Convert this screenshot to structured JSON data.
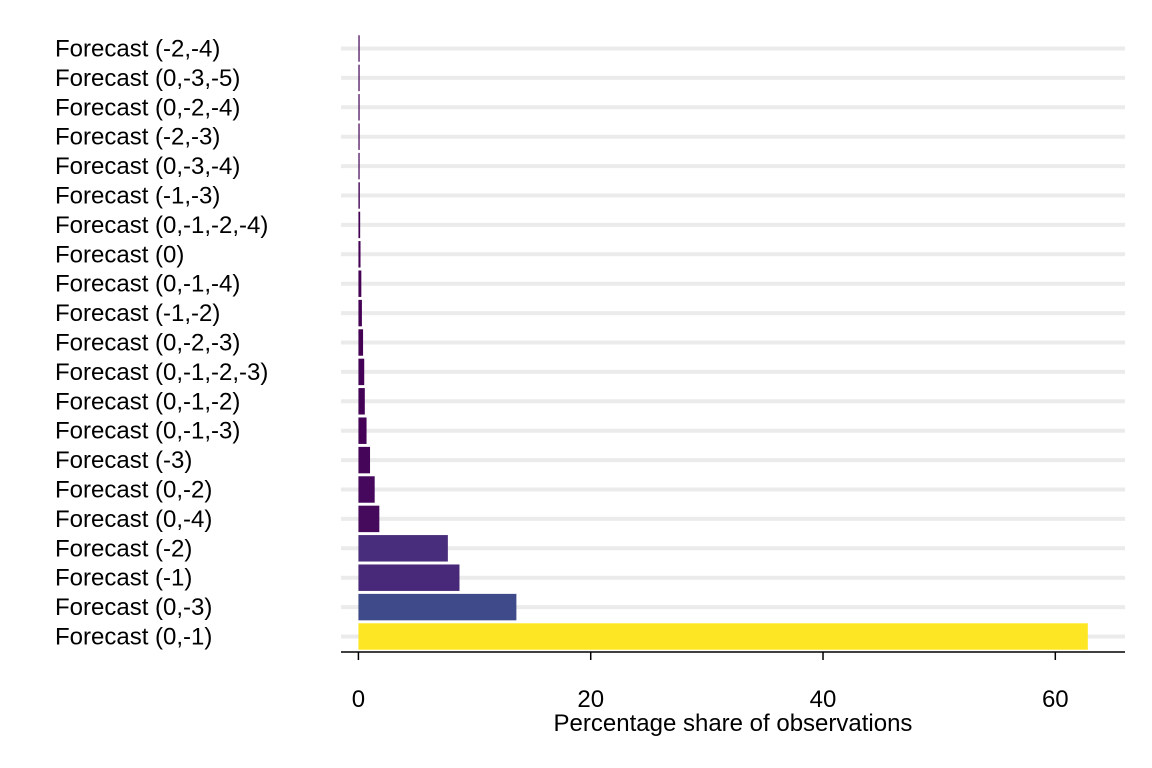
{
  "chart_data": {
    "type": "bar",
    "orientation": "horizontal",
    "categories": [
      "Forecast (-2,-4)",
      "Forecast (0,-3,-5)",
      "Forecast (0,-2,-4)",
      "Forecast (-2,-3)",
      "Forecast (0,-3,-4)",
      "Forecast (-1,-3)",
      "Forecast (0,-1,-2,-4)",
      "Forecast (0)",
      "Forecast (0,-1,-4)",
      "Forecast (-1,-2)",
      "Forecast (0,-2,-3)",
      "Forecast (0,-1,-2,-3)",
      "Forecast (0,-1,-2)",
      "Forecast (0,-1,-3)",
      "Forecast (-3)",
      "Forecast (0,-2)",
      "Forecast (0,-4)",
      "Forecast (-2)",
      "Forecast (-1)",
      "Forecast (0,-3)",
      "Forecast (0,-1)"
    ],
    "values": [
      0.05,
      0.05,
      0.06,
      0.08,
      0.1,
      0.12,
      0.15,
      0.18,
      0.25,
      0.3,
      0.4,
      0.5,
      0.55,
      0.7,
      1.0,
      1.4,
      1.8,
      7.7,
      8.7,
      13.6,
      62.8
    ],
    "colors": [
      "#440154",
      "#440154",
      "#440154",
      "#440154",
      "#440154",
      "#440154",
      "#440154",
      "#440154",
      "#440154",
      "#440154",
      "#440154",
      "#440256",
      "#440256",
      "#440357",
      "#450559",
      "#46085c",
      "#460a5d",
      "#472d7b",
      "#482878",
      "#3e4a89",
      "#fde725"
    ],
    "xlabel": "Percentage share of observations",
    "ylabel": "",
    "title": "",
    "xlim": [
      -1.5,
      66
    ],
    "xticks": [
      0,
      20,
      40,
      60
    ],
    "xtick_labels": [
      "0",
      "20",
      "40",
      "60"
    ],
    "grid": "horizontal",
    "grid_color": "#ebebeb",
    "legend": "none"
  }
}
